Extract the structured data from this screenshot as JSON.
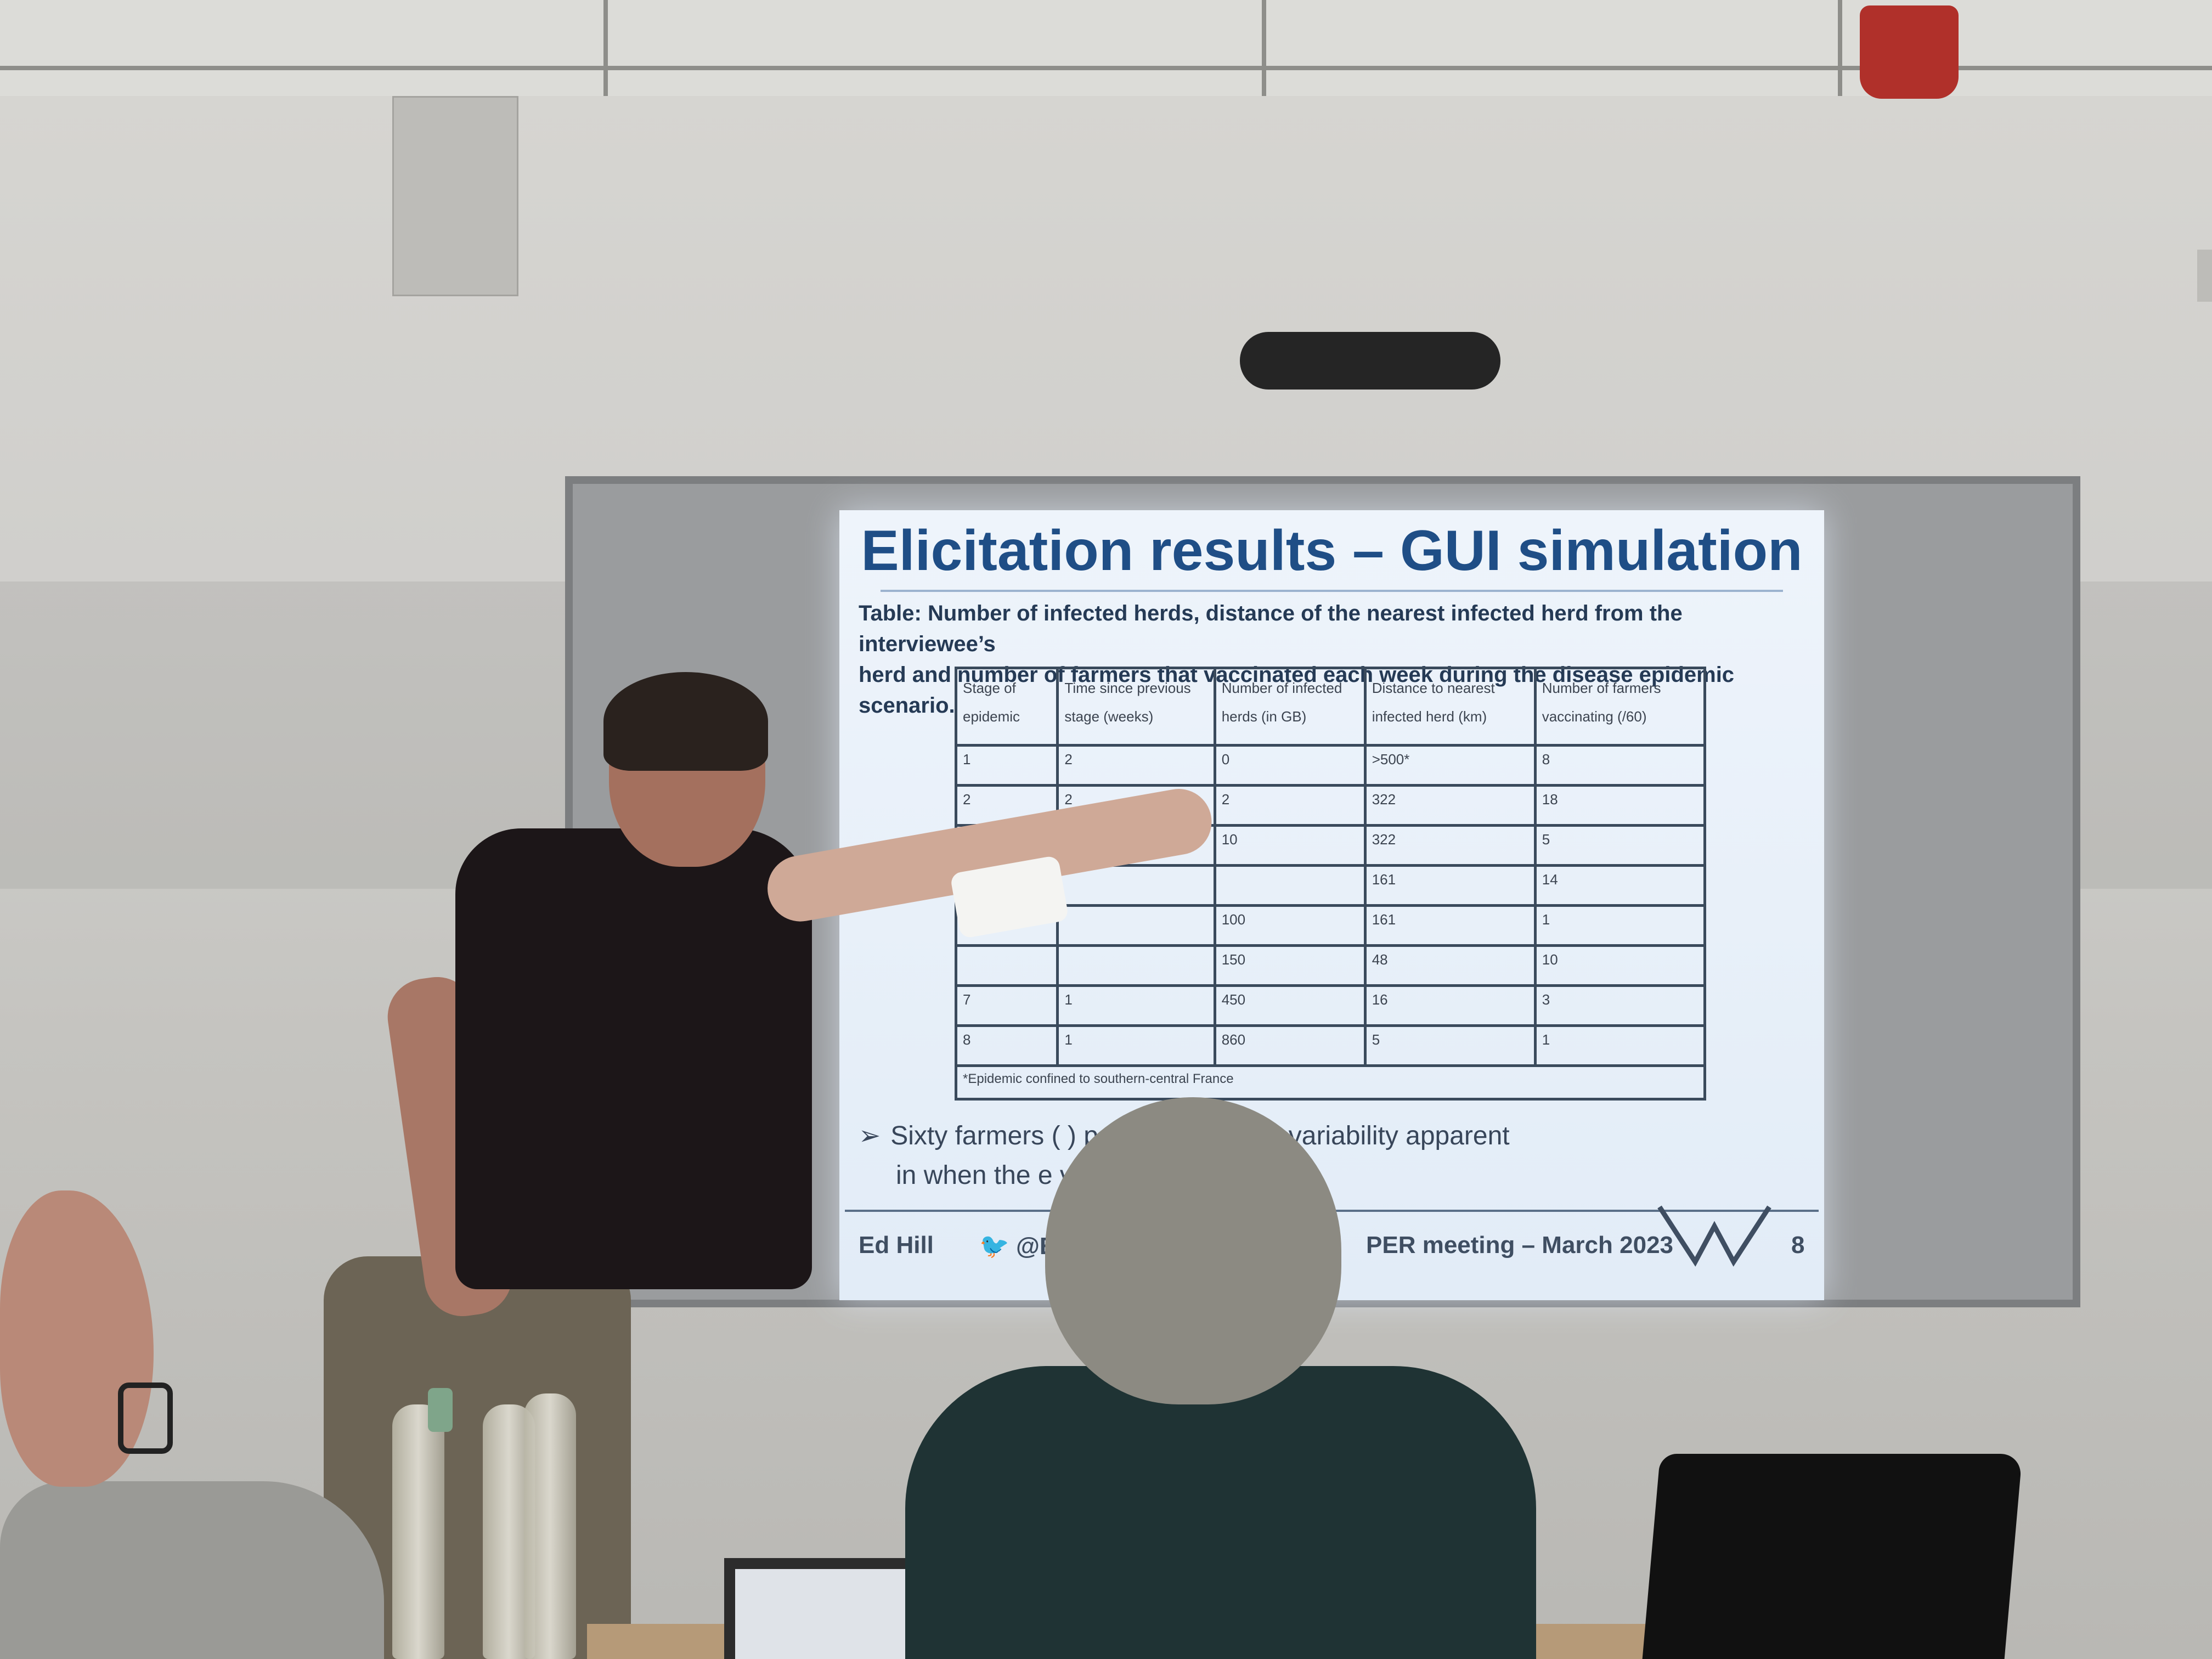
{
  "slide": {
    "title": "Elicitation results – GUI simulation",
    "caption_line1": "Table: Number of infected herds, distance of the nearest infected herd from the interviewee’s",
    "caption_line2": "herd and number of farmers that vaccinated each week during the disease epidemic scenario.",
    "table": {
      "headers": [
        "Stage of epidemic",
        "Time since previous stage (weeks)",
        "Number of infected herds (in GB)",
        "Distance to nearest infected herd (km)",
        "Number of farmers vaccinating (/60)"
      ],
      "rows": [
        [
          "1",
          "2",
          "0",
          ">500*",
          "8"
        ],
        [
          "2",
          "2",
          "2",
          "322",
          "18"
        ],
        [
          "3",
          "1",
          "10",
          "322",
          "5"
        ],
        [
          "",
          "",
          "",
          "161",
          "14"
        ],
        [
          "",
          "",
          "100",
          "161",
          "1"
        ],
        [
          "",
          "",
          "150",
          "48",
          "10"
        ],
        [
          "7",
          "1",
          "450",
          "16",
          "3"
        ],
        [
          "8",
          "1",
          "860",
          "5",
          "1"
        ]
      ],
      "footnote": "*Epidemic confined to southern-central France"
    },
    "bullet_line1": "Sixty farmers (                          ) participated, with variability apparent",
    "bullet_line2": "in when the                                  e vaccination.",
    "footer": {
      "author": "Ed Hill",
      "handle": "@E",
      "event": "PER meeting – March 2023",
      "page": "8"
    }
  },
  "colors": {
    "slide_title": "#1f4e86",
    "slide_background": "#e8f0f9",
    "table_border": "#3a4a5c"
  }
}
